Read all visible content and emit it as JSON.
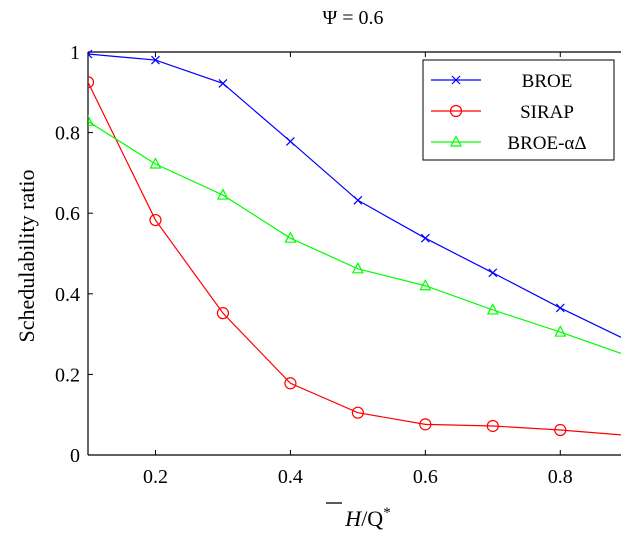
{
  "chart_data": {
    "type": "line",
    "title": "Ψ = 0.6",
    "xlabel": "H/Q*",
    "xlabel_parts": {
      "overline": "H",
      "rest": "/Q",
      "sup": "*"
    },
    "ylabel": "Schedulability ratio",
    "xlim": [
      0.1,
      0.89
    ],
    "ylim": [
      0,
      1
    ],
    "xticks": [
      0.2,
      0.4,
      0.6,
      0.8
    ],
    "xtick_labels": [
      "0.2",
      "0.4",
      "0.6",
      "0.8"
    ],
    "yticks": [
      0,
      0.2,
      0.4,
      0.6,
      0.8,
      1
    ],
    "ytick_labels": [
      "0",
      "0.2",
      "0.4",
      "0.6",
      "0.8",
      "1"
    ],
    "grid": false,
    "legend_position": "top-right",
    "series": [
      {
        "name": "BROE",
        "color": "#0000ff",
        "marker": "x",
        "x": [
          0.1,
          0.2,
          0.3,
          0.4,
          0.5,
          0.6,
          0.7,
          0.8,
          0.89
        ],
        "y": [
          0.995,
          0.98,
          0.922,
          0.778,
          0.632,
          0.538,
          0.452,
          0.365,
          0.292
        ],
        "marked": [
          true,
          true,
          true,
          true,
          true,
          true,
          true,
          true,
          false
        ]
      },
      {
        "name": "SIRAP",
        "color": "#ff0000",
        "marker": "o",
        "x": [
          0.1,
          0.2,
          0.3,
          0.4,
          0.5,
          0.6,
          0.7,
          0.8,
          0.89
        ],
        "y": [
          0.925,
          0.583,
          0.352,
          0.178,
          0.105,
          0.076,
          0.072,
          0.062,
          0.05
        ],
        "marked": [
          true,
          true,
          true,
          true,
          true,
          true,
          true,
          true,
          false
        ]
      },
      {
        "name": "BROE-αΔ",
        "color": "#00ff00",
        "marker": "triangle",
        "x": [
          0.1,
          0.2,
          0.3,
          0.4,
          0.5,
          0.6,
          0.7,
          0.8,
          0.89
        ],
        "y": [
          0.828,
          0.722,
          0.645,
          0.538,
          0.462,
          0.42,
          0.36,
          0.305,
          0.252
        ],
        "marked": [
          true,
          true,
          true,
          true,
          true,
          true,
          true,
          true,
          false
        ]
      }
    ]
  }
}
